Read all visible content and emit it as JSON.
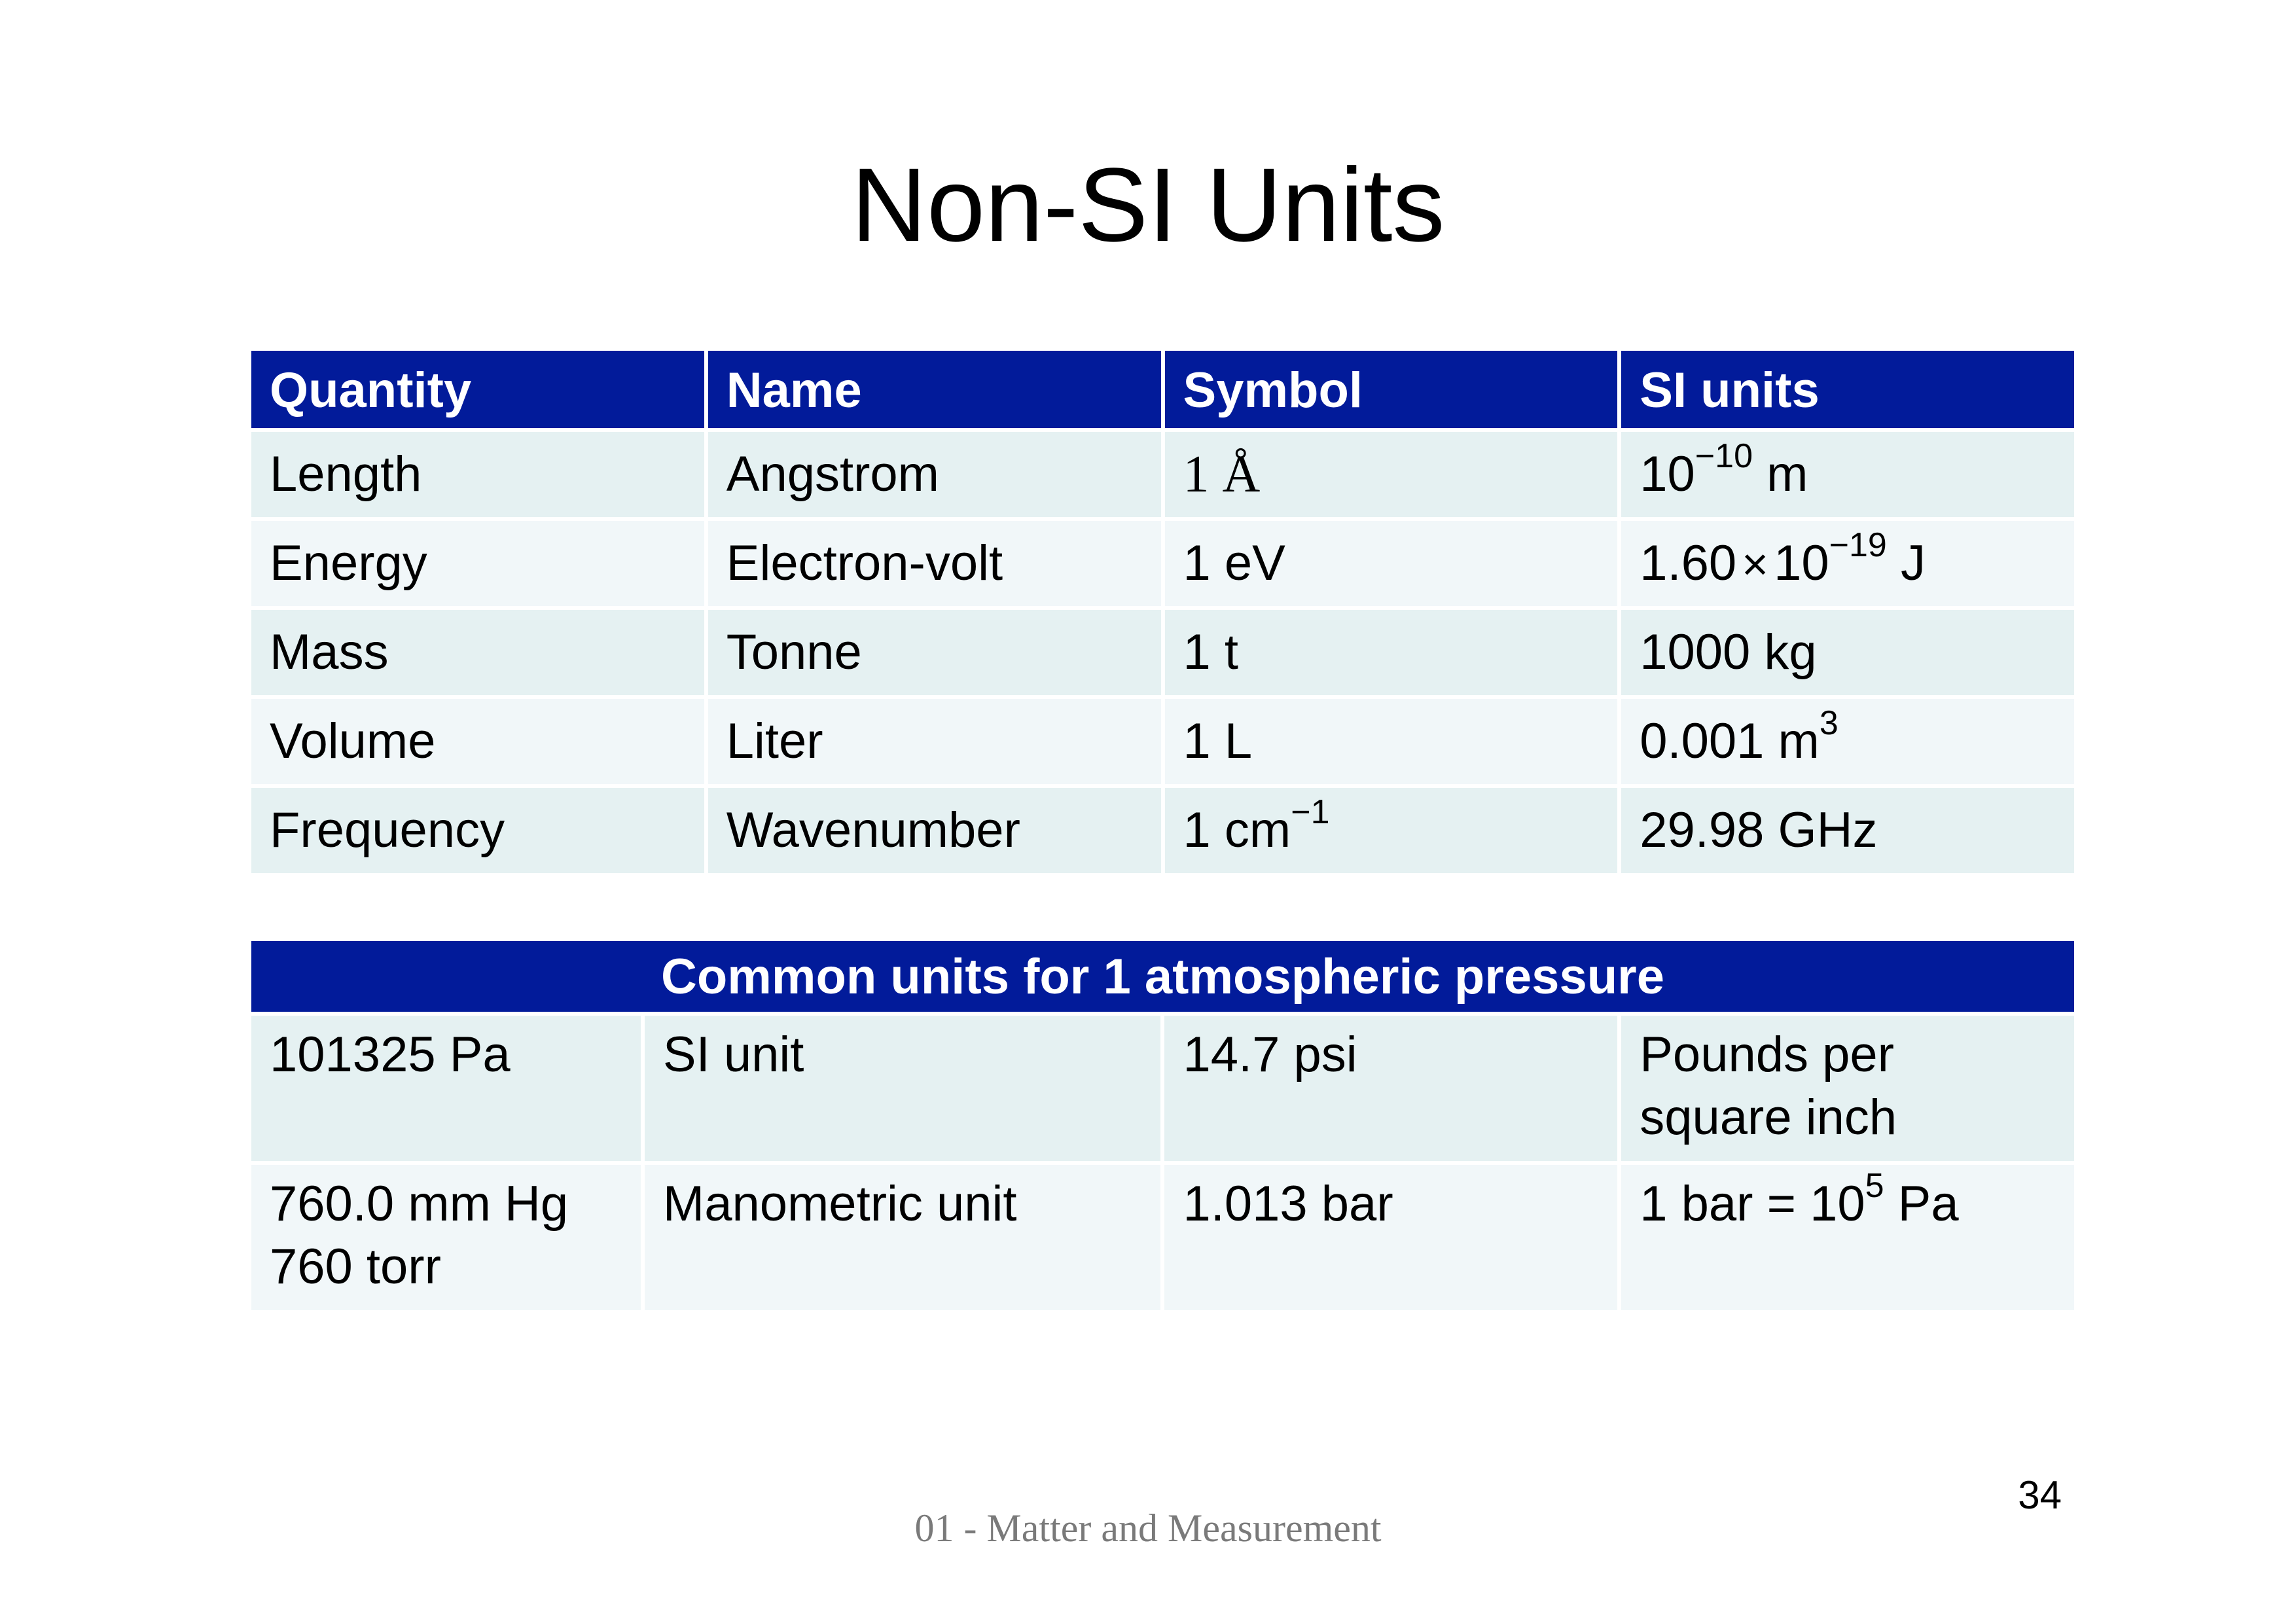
{
  "slide": {
    "title": "Non-SI Units",
    "footer": "01 - Matter and Measurement",
    "page_number": "34"
  },
  "units_table": {
    "headers": [
      "Quantity",
      "Name",
      "Symbol",
      "SI units"
    ],
    "rows": [
      {
        "quantity": "Length",
        "name": "Angstrom",
        "symbol": "1 Å",
        "si_base": "10",
        "si_exp": "−10",
        "si_suffix": " m"
      },
      {
        "quantity": "Energy",
        "name": "Electron-volt",
        "symbol": "1 eV",
        "si_coef": "1.60",
        "si_times": "×",
        "si_base": "10",
        "si_exp": "−19",
        "si_suffix": " J"
      },
      {
        "quantity": "Mass",
        "name": "Tonne",
        "symbol": "1 t",
        "si_value": "1000 kg"
      },
      {
        "quantity": "Volume",
        "name": "Liter",
        "symbol": "1 L",
        "si_base": "0.001 m",
        "si_exp": "3"
      },
      {
        "quantity": "Frequency",
        "name": "Wavenumber",
        "symbol_base": "1 cm",
        "symbol_exp": "−1",
        "si_value": "29.98 GHz"
      }
    ]
  },
  "pressure_table": {
    "header": "Common units for 1 atmospheric pressure",
    "rows": [
      {
        "value1_line1": "101325 Pa",
        "desc1": "SI unit",
        "value2": "14.7 psi",
        "desc2_line1": "Pounds per",
        "desc2_line2": "square inch"
      },
      {
        "value1_line1": "760.0 mm Hg",
        "value1_line2": "760 torr",
        "desc1": "Manometric unit",
        "value2": "1.013 bar",
        "desc2_base": "1 bar = 10",
        "desc2_exp": "5",
        "desc2_suffix": " Pa"
      }
    ]
  }
}
